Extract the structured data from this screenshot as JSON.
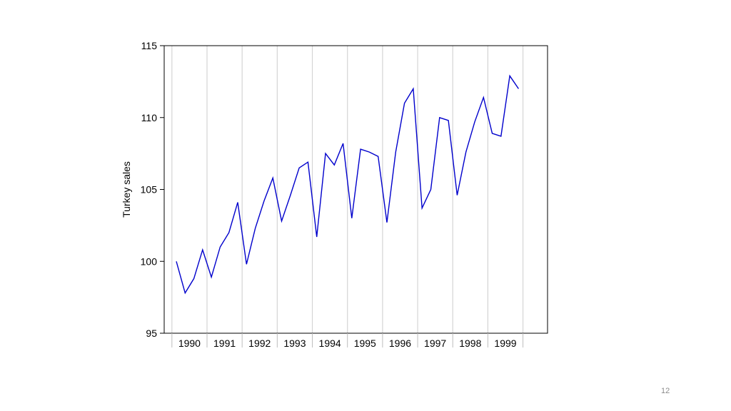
{
  "slide": {
    "number": "12"
  },
  "chart_data": {
    "type": "line",
    "ylabel": "Turkey sales",
    "xlabel": "",
    "ylim": [
      95,
      115
    ],
    "yticks": [
      95,
      100,
      105,
      110,
      115
    ],
    "x_domain": [
      1989.78,
      2000.7
    ],
    "year_labels": [
      "1990",
      "1991",
      "1992",
      "1993",
      "1994",
      "1995",
      "1996",
      "1997",
      "1998",
      "1999"
    ],
    "year_gridlines": [
      1990,
      1991,
      1992,
      1993,
      1994,
      1995,
      1996,
      1997,
      1998,
      1999,
      2000
    ],
    "grid": "vertical at year boundaries",
    "line_color": "#0000cc",
    "series": [
      {
        "frequency": "quarterly",
        "start": 1990,
        "x": [
          1990.125,
          1990.375,
          1990.625,
          1990.875,
          1991.125,
          1991.375,
          1991.625,
          1991.875,
          1992.125,
          1992.375,
          1992.625,
          1992.875,
          1993.125,
          1993.375,
          1993.625,
          1993.875,
          1994.125,
          1994.375,
          1994.625,
          1994.875,
          1995.125,
          1995.375,
          1995.625,
          1995.875,
          1996.125,
          1996.375,
          1996.625,
          1996.875,
          1997.125,
          1997.375,
          1997.625,
          1997.875,
          1998.125,
          1998.375,
          1998.625,
          1998.875,
          1999.125,
          1999.375,
          1999.625,
          1999.875
        ],
        "values": [
          100.0,
          97.8,
          98.8,
          100.8,
          98.9,
          101.0,
          102.0,
          104.1,
          99.8,
          102.3,
          104.2,
          105.8,
          102.8,
          104.6,
          106.5,
          106.9,
          101.7,
          107.5,
          106.7,
          108.2,
          103.0,
          107.8,
          107.6,
          107.3,
          102.7,
          107.6,
          111.0,
          112.0,
          103.7,
          105.0,
          110.0,
          109.8,
          104.6,
          107.6,
          109.7,
          111.4,
          108.9,
          108.7,
          112.9,
          112.0
        ]
      }
    ]
  }
}
